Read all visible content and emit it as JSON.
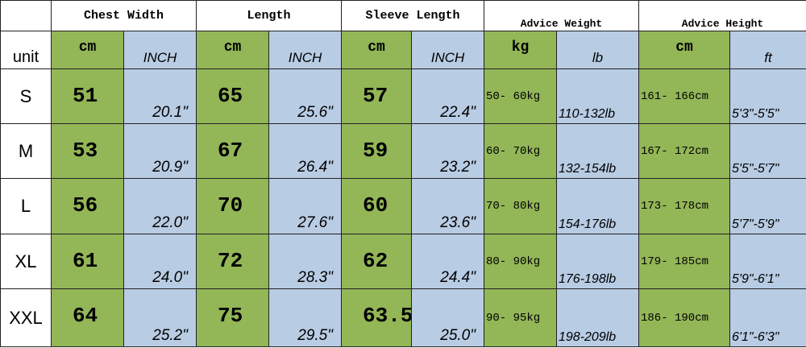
{
  "header": {
    "groups": [
      "Chest Width",
      "Length",
      "Sleeve Length",
      "Advice Weight",
      "Advice Height"
    ]
  },
  "units": {
    "label": "unit",
    "values": [
      "cm",
      "INCH",
      "cm",
      "INCH",
      "cm",
      "INCH",
      "kg",
      "lb",
      "cm",
      "ft"
    ]
  },
  "table": {
    "rows": [
      {
        "size": "S",
        "values": [
          "51",
          "20.1\"",
          "65",
          "25.6\"",
          "57",
          "22.4\"",
          "50- 60kg",
          "110-132lb",
          "161- 166cm",
          "5'3\"-5'5\""
        ]
      },
      {
        "size": "M",
        "values": [
          "53",
          "20.9\"",
          "67",
          "26.4\"",
          "59",
          "23.2\"",
          "60- 70kg",
          "132-154lb",
          "167- 172cm",
          "5'5\"-5'7\""
        ]
      },
      {
        "size": "L",
        "values": [
          "56",
          "22.0\"",
          "70",
          "27.6\"",
          "60",
          "23.6\"",
          "70- 80kg",
          "154-176lb",
          "173- 178cm",
          "5'7\"-5'9\""
        ]
      },
      {
        "size": "XL",
        "values": [
          "61",
          "24.0\"",
          "72",
          "28.3\"",
          "62",
          "24.4\"",
          "80- 90kg",
          "176-198lb",
          "179- 185cm",
          "5'9\"-6'1\""
        ]
      },
      {
        "size": "XXL",
        "values": [
          "64",
          "25.2\"",
          "75",
          "29.5\"",
          "63.5",
          "25.0\"",
          "90- 95kg",
          "198-209lb",
          "186- 190cm",
          "6'1\"-6'3\""
        ]
      }
    ]
  }
}
